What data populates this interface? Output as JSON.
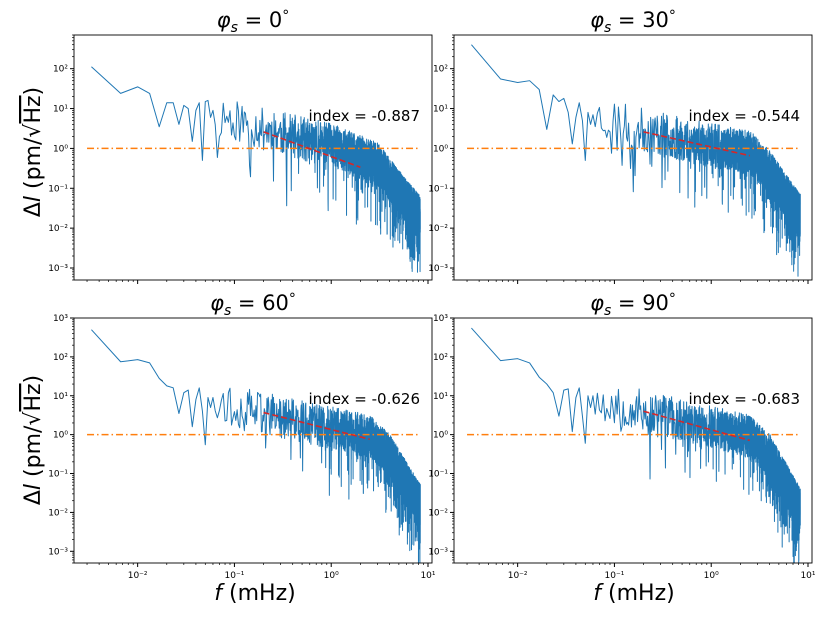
{
  "figure": {
    "xlabel_var": "f",
    "xlabel_unit": " (mHz)",
    "ylabel_delta": "Δ",
    "ylabel_var": "l",
    "ylabel_open": " (pm/",
    "ylabel_root": "√",
    "ylabel_hz": "Hz",
    "ylabel_close": ")",
    "title_var": "φ",
    "title_sub": "s",
    "title_eq": " = ",
    "title_deg": "°",
    "index_label": "index = ",
    "colors": {
      "spectrum": "#1f77b4",
      "unity": "#ff7f0e",
      "fit": "#d62728"
    }
  },
  "chart_data": [
    {
      "type": "line",
      "title_value": "0",
      "title": "φs = 0°",
      "index_text": "-0.887",
      "xscale": "log",
      "yscale": "log",
      "xlim": [
        0.0022,
        11
      ],
      "ylim": [
        0.0005,
        700
      ],
      "x_tick_values": [
        0.01,
        0.1,
        1,
        10
      ],
      "x_tick_labels": [
        "10⁻²",
        "10⁻¹",
        "10⁰",
        "10¹"
      ],
      "y_tick_values": [
        0.001,
        0.01,
        0.1,
        1,
        10,
        100
      ],
      "y_tick_labels": [
        "10⁻³",
        "10⁻²",
        "10⁻¹",
        "10⁰",
        "10¹",
        "10²"
      ],
      "show_x_tick_labels": false,
      "series": [
        {
          "name": "amplitude spectrum",
          "low_freq_points": [
            [
              0.00333,
              112
            ],
            [
              0.00667,
              24
            ],
            [
              0.01,
              35
            ],
            [
              0.0133,
              24
            ],
            [
              0.0167,
              3.5
            ],
            [
              0.02,
              14
            ],
            [
              0.0233,
              14
            ],
            [
              0.0267,
              4
            ],
            [
              0.03,
              12
            ],
            [
              0.0333,
              10
            ],
            [
              0.0367,
              1.5
            ],
            [
              0.04,
              9
            ],
            [
              0.0433,
              14
            ],
            [
              0.0467,
              0.5
            ],
            [
              0.05,
              15
            ],
            [
              0.0533,
              16
            ],
            [
              0.0567,
              6
            ],
            [
              0.06,
              9
            ]
          ],
          "trend_anchors": [
            [
              0.06,
              8
            ],
            [
              0.2,
              3
            ],
            [
              1,
              1.2
            ],
            [
              2,
              0.6
            ],
            [
              3,
              0.4
            ],
            [
              5,
              0.08
            ],
            [
              8.3,
              0.018
            ]
          ],
          "scatter_decades": 0.55,
          "dip_probability": 0.1,
          "dip_decades": 1.3,
          "seed": 11
        },
        {
          "name": "unity reference",
          "y": 1,
          "x_range": [
            0.003,
            8.3
          ]
        },
        {
          "name": "power-law fit",
          "index": -0.887,
          "x_range": [
            0.2,
            2.0
          ],
          "y_at_start": 2.6
        }
      ]
    },
    {
      "type": "line",
      "title_value": "30",
      "title": "φs = 30°",
      "index_text": "-0.544",
      "xscale": "log",
      "yscale": "log",
      "xlim": [
        0.0022,
        11
      ],
      "ylim": [
        0.0005,
        700
      ],
      "x_tick_values": [
        0.01,
        0.1,
        1,
        10
      ],
      "x_tick_labels": [
        "10⁻²",
        "10⁻¹",
        "10⁰",
        "10¹"
      ],
      "y_tick_values": [
        0.001,
        0.01,
        0.1,
        1,
        10,
        100
      ],
      "y_tick_labels": [
        "10⁻³",
        "10⁻²",
        "10⁻¹",
        "10⁰",
        "10¹",
        "10²"
      ],
      "show_x_tick_labels": false,
      "series": [
        {
          "name": "amplitude spectrum",
          "low_freq_points": [
            [
              0.00333,
              400
            ],
            [
              0.00667,
              55
            ],
            [
              0.01,
              45
            ],
            [
              0.0133,
              50
            ],
            [
              0.0167,
              30
            ],
            [
              0.02,
              3
            ],
            [
              0.0233,
              22
            ],
            [
              0.0267,
              15
            ],
            [
              0.03,
              18
            ],
            [
              0.0333,
              8
            ],
            [
              0.0367,
              1.3
            ],
            [
              0.04,
              6
            ],
            [
              0.0433,
              14
            ],
            [
              0.0467,
              5
            ],
            [
              0.05,
              0.5
            ],
            [
              0.0533,
              8
            ],
            [
              0.0567,
              4
            ],
            [
              0.06,
              7
            ]
          ],
          "trend_anchors": [
            [
              0.06,
              7
            ],
            [
              0.2,
              2.8
            ],
            [
              1,
              1.2
            ],
            [
              2.5,
              0.8
            ],
            [
              4,
              0.25
            ],
            [
              8.3,
              0.02
            ]
          ],
          "scatter_decades": 0.55,
          "dip_probability": 0.1,
          "dip_decades": 1.3,
          "seed": 23
        },
        {
          "name": "unity reference",
          "y": 1,
          "x_range": [
            0.003,
            8.3
          ]
        },
        {
          "name": "power-law fit",
          "index": -0.544,
          "x_range": [
            0.2,
            2.5
          ],
          "y_at_start": 2.6
        }
      ]
    },
    {
      "type": "line",
      "title_value": "60",
      "title": "φs = 60°",
      "index_text": "-0.626",
      "xscale": "log",
      "yscale": "log",
      "xlim": [
        0.0022,
        11
      ],
      "ylim": [
        0.0005,
        1000
      ],
      "x_tick_values": [
        0.01,
        0.1,
        1,
        10
      ],
      "x_tick_labels": [
        "10⁻²",
        "10⁻¹",
        "10⁰",
        "10¹"
      ],
      "y_tick_values": [
        0.001,
        0.01,
        0.1,
        1,
        10,
        100,
        1000
      ],
      "y_tick_labels": [
        "10⁻³",
        "10⁻²",
        "10⁻¹",
        "10⁰",
        "10¹",
        "10²",
        "10³"
      ],
      "show_x_tick_labels": true,
      "series": [
        {
          "name": "amplitude spectrum",
          "low_freq_points": [
            [
              0.00333,
              500
            ],
            [
              0.00667,
              75
            ],
            [
              0.01,
              85
            ],
            [
              0.0133,
              70
            ],
            [
              0.0167,
              28
            ],
            [
              0.02,
              18
            ],
            [
              0.0233,
              16
            ],
            [
              0.0267,
              3.5
            ],
            [
              0.03,
              12
            ],
            [
              0.0333,
              14
            ],
            [
              0.0367,
              1.6
            ],
            [
              0.04,
              8
            ],
            [
              0.0433,
              16
            ],
            [
              0.0467,
              4
            ],
            [
              0.05,
              0.55
            ],
            [
              0.0533,
              9
            ],
            [
              0.0567,
              5
            ],
            [
              0.06,
              9
            ]
          ],
          "trend_anchors": [
            [
              0.06,
              8
            ],
            [
              0.2,
              3.5
            ],
            [
              1,
              1.5
            ],
            [
              2.5,
              0.9
            ],
            [
              4,
              0.3
            ],
            [
              8.3,
              0.015
            ]
          ],
          "scatter_decades": 0.55,
          "dip_probability": 0.1,
          "dip_decades": 1.3,
          "seed": 37
        },
        {
          "name": "unity reference",
          "y": 1,
          "x_range": [
            0.003,
            8.3
          ]
        },
        {
          "name": "power-law fit",
          "index": -0.626,
          "x_range": [
            0.2,
            2.5
          ],
          "y_at_start": 3.7
        }
      ]
    },
    {
      "type": "line",
      "title_value": "90",
      "title": "φs = 90°",
      "index_text": "-0.683",
      "xscale": "log",
      "yscale": "log",
      "xlim": [
        0.0022,
        11
      ],
      "ylim": [
        0.0005,
        1000
      ],
      "x_tick_values": [
        0.01,
        0.1,
        1,
        10
      ],
      "x_tick_labels": [
        "10⁻²",
        "10⁻¹",
        "10⁰",
        "10¹"
      ],
      "y_tick_values": [
        0.001,
        0.01,
        0.1,
        1,
        10,
        100,
        1000
      ],
      "y_tick_labels": [
        "10⁻³",
        "10⁻²",
        "10⁻¹",
        "10⁰",
        "10¹",
        "10²",
        "10³"
      ],
      "show_x_tick_labels": true,
      "series": [
        {
          "name": "amplitude spectrum",
          "low_freq_points": [
            [
              0.00333,
              550
            ],
            [
              0.00667,
              80
            ],
            [
              0.01,
              90
            ],
            [
              0.0133,
              70
            ],
            [
              0.0167,
              30
            ],
            [
              0.02,
              20
            ],
            [
              0.0233,
              12
            ],
            [
              0.0267,
              3
            ],
            [
              0.03,
              14
            ],
            [
              0.0333,
              15
            ],
            [
              0.0367,
              1.2
            ],
            [
              0.04,
              9
            ],
            [
              0.0433,
              16
            ],
            [
              0.0467,
              3
            ],
            [
              0.05,
              0.6
            ],
            [
              0.0533,
              10
            ],
            [
              0.0567,
              5
            ],
            [
              0.06,
              10
            ]
          ],
          "trend_anchors": [
            [
              0.06,
              9
            ],
            [
              0.2,
              4
            ],
            [
              1,
              1.6
            ],
            [
              2.5,
              0.9
            ],
            [
              4,
              0.3
            ],
            [
              8.3,
              0.012
            ]
          ],
          "scatter_decades": 0.55,
          "dip_probability": 0.1,
          "dip_decades": 1.3,
          "seed": 53
        },
        {
          "name": "unity reference",
          "y": 1,
          "x_range": [
            0.003,
            8.3
          ]
        },
        {
          "name": "power-law fit",
          "index": -0.683,
          "x_range": [
            0.2,
            2.5
          ],
          "y_at_start": 4.0
        }
      ]
    }
  ]
}
